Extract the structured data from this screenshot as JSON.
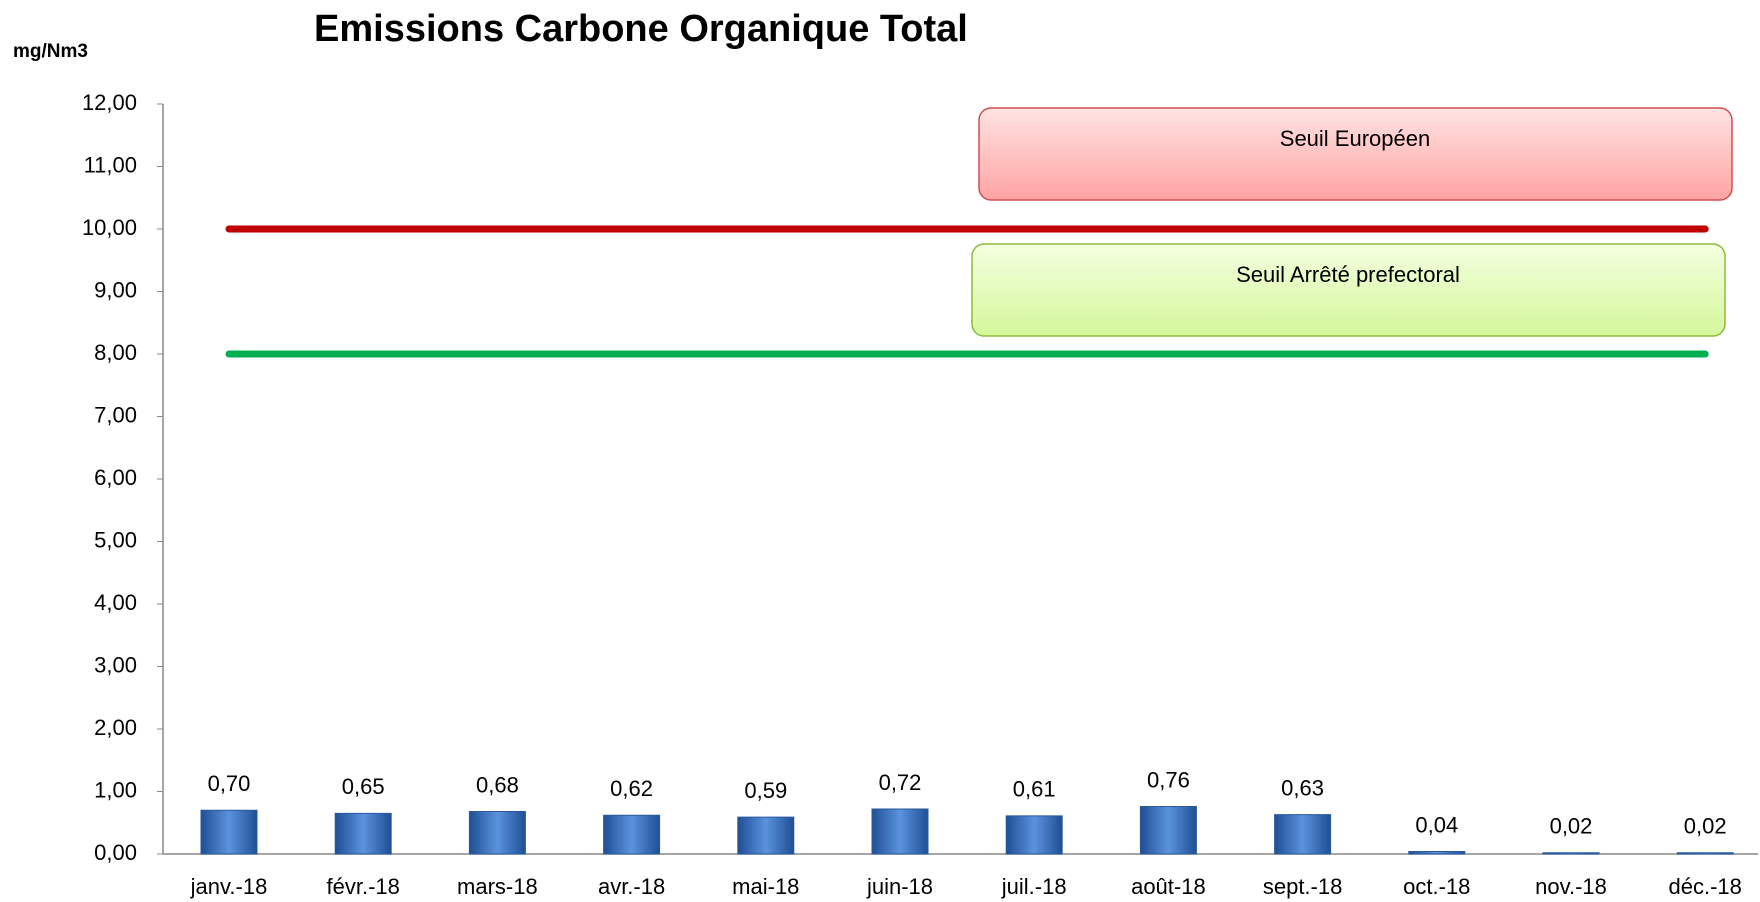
{
  "chart_data": {
    "type": "bar",
    "title": "Emissions Carbone Organique Total",
    "y_label": "mg/Nm3",
    "categories": [
      "janv.-18",
      "févr.-18",
      "mars-18",
      "avr.-18",
      "mai-18",
      "juin-18",
      "juil.-18",
      "août-18",
      "sept.-18",
      "oct.-18",
      "nov.-18",
      "déc.-18"
    ],
    "values": [
      0.7,
      0.65,
      0.68,
      0.62,
      0.59,
      0.72,
      0.61,
      0.76,
      0.63,
      0.04,
      0.02,
      0.02
    ],
    "value_labels": [
      "0,70",
      "0,65",
      "0,68",
      "0,62",
      "0,59",
      "0,72",
      "0,61",
      "0,76",
      "0,63",
      "0,04",
      "0,02",
      "0,02"
    ],
    "color": "#3a72c4",
    "ylim": [
      0,
      12
    ],
    "yticks": [
      {
        "value": 0,
        "label": "0,00"
      },
      {
        "value": 1,
        "label": "1,00"
      },
      {
        "value": 2,
        "label": "2,00"
      },
      {
        "value": 3,
        "label": "3,00"
      },
      {
        "value": 4,
        "label": "4,00"
      },
      {
        "value": 5,
        "label": "5,00"
      },
      {
        "value": 6,
        "label": "6,00"
      },
      {
        "value": 7,
        "label": "7,00"
      },
      {
        "value": 8,
        "label": "8,00"
      },
      {
        "value": 9,
        "label": "9,00"
      },
      {
        "value": 10,
        "label": "10,00"
      },
      {
        "value": 11,
        "label": "11,00"
      },
      {
        "value": 12,
        "label": "12,00"
      }
    ],
    "thresholds": [
      {
        "name": "Seuil Européen",
        "value": 10,
        "color": "#c00000"
      },
      {
        "name": "Seuil Arrêté prefectoral",
        "value": 8,
        "color": "#00b050"
      }
    ]
  }
}
